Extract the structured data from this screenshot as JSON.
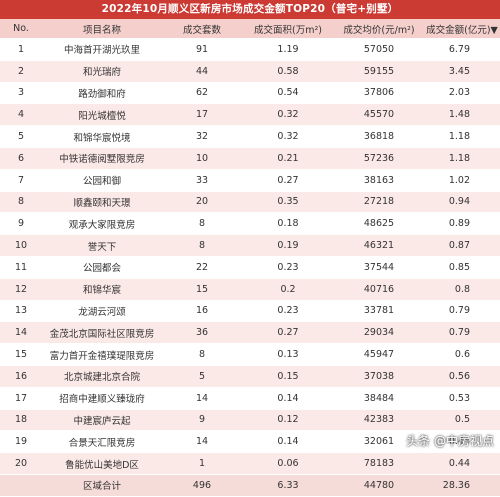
{
  "title": "2022年10月顺义区新房市场成交金额TOP20（普宅+别墅）",
  "headers": [
    "No.",
    "项目名称",
    "成交套数",
    "成交面积(万m²)",
    "成交均价(元/m²)",
    "成交金额(亿元)▼"
  ],
  "rows": [
    [
      "1",
      "中海首开湖光玖里",
      "91",
      "1.19",
      "57050",
      "6.79"
    ],
    [
      "2",
      "和光瑞府",
      "44",
      "0.58",
      "59155",
      "3.45"
    ],
    [
      "3",
      "路劲御和府",
      "62",
      "0.54",
      "37806",
      "2.03"
    ],
    [
      "4",
      "阳光城檀悦",
      "17",
      "0.32",
      "45570",
      "1.48"
    ],
    [
      "5",
      "和锦华宸悦境",
      "32",
      "0.32",
      "36818",
      "1.18"
    ],
    [
      "6",
      "中铁诺德阅墅限竞房",
      "10",
      "0.21",
      "57236",
      "1.18"
    ],
    [
      "7",
      "公园和御",
      "33",
      "0.27",
      "38163",
      "1.02"
    ],
    [
      "8",
      "顺鑫颐和天璟",
      "20",
      "0.35",
      "27218",
      "0.94"
    ],
    [
      "9",
      "观承大家限竞房",
      "8",
      "0.18",
      "48625",
      "0.89"
    ],
    [
      "10",
      "誉天下",
      "8",
      "0.19",
      "46321",
      "0.87"
    ],
    [
      "11",
      "公园都会",
      "22",
      "0.23",
      "37544",
      "0.85"
    ],
    [
      "12",
      "和锦华宸",
      "15",
      "0.2",
      "40716",
      "0.8"
    ],
    [
      "13",
      "龙湖云河颂",
      "16",
      "0.23",
      "33781",
      "0.79"
    ],
    [
      "14",
      "金茂北京国际社区限竞房",
      "36",
      "0.27",
      "29034",
      "0.79"
    ],
    [
      "15",
      "富力首开金禧璞瑅限竞房",
      "8",
      "0.13",
      "45947",
      "0.6"
    ],
    [
      "16",
      "北京城建北京合院",
      "5",
      "0.15",
      "37038",
      "0.56"
    ],
    [
      "17",
      "招商中建顺义臻珑府",
      "14",
      "0.14",
      "38484",
      "0.53"
    ],
    [
      "18",
      "中建宸庐云起",
      "9",
      "0.12",
      "42383",
      "0.5"
    ],
    [
      "19",
      "合景天汇限竞房",
      "14",
      "0.14",
      "32061",
      "0.44"
    ],
    [
      "20",
      "鲁能优山美地D区",
      "1",
      "0.06",
      "78183",
      "0.44"
    ]
  ],
  "total": [
    "",
    "区域合计",
    "496",
    "6.33",
    "44780",
    "28.36"
  ],
  "watermark": "头条 @中房视点"
}
